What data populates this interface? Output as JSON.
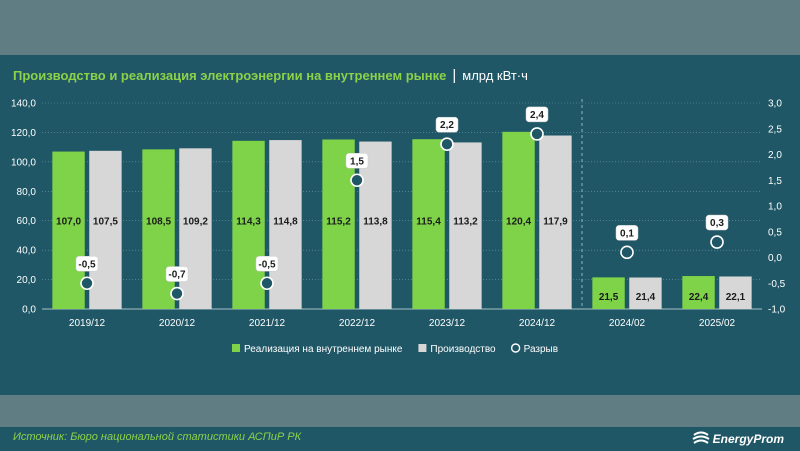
{
  "title": "Производство и реализация электроэнергии на внутреннем рынке",
  "title_separator": "|",
  "unit": "млрд кВт·ч",
  "source": "Источник: Бюро национальной статистики АСПиР РК",
  "brand": {
    "name": "EnergyProm",
    "icon": "energyprom-logo-icon"
  },
  "colors": {
    "background": "#1f5766",
    "sales": "#7ed348",
    "production": "#d7d7d7",
    "gap_marker_fill": "#1f5766",
    "gap_marker_stroke": "#ffffff",
    "grid": "#6f9aa3",
    "text": "#ffffff",
    "title": "#8cd14a"
  },
  "chart_data": {
    "type": "bar",
    "categories": [
      "2019/12",
      "2020/12",
      "2021/12",
      "2022/12",
      "2023/12",
      "2024/12",
      "2024/02",
      "2025/02"
    ],
    "divider_after_index": 5,
    "series": [
      {
        "name": "Реализация на внутреннем рынке",
        "type": "bar",
        "axis": "left",
        "values": [
          107.0,
          108.5,
          114.3,
          115.2,
          115.4,
          120.4,
          21.5,
          22.4
        ],
        "labels": [
          "107,0",
          "108,5",
          "114,3",
          "115,2",
          "115,4",
          "120,4",
          "21,5",
          "22,4"
        ]
      },
      {
        "name": "Производство",
        "type": "bar",
        "axis": "left",
        "values": [
          107.5,
          109.2,
          114.8,
          113.8,
          113.2,
          117.9,
          21.4,
          22.1
        ],
        "labels": [
          "107,5",
          "109,2",
          "114,8",
          "113,8",
          "113,2",
          "117,9",
          "21,4",
          "22,1"
        ]
      },
      {
        "name": "Разрыв",
        "type": "scatter",
        "axis": "right",
        "values": [
          -0.5,
          -0.7,
          -0.5,
          1.5,
          2.2,
          2.4,
          0.1,
          0.3
        ],
        "labels": [
          "-0,5",
          "-0,7",
          "-0,5",
          "1,5",
          "2,2",
          "2,4",
          "0,1",
          "0,3"
        ]
      }
    ],
    "y_left": {
      "min": 0,
      "max": 140,
      "ticks": [
        "0,0",
        "20,0",
        "40,0",
        "60,0",
        "80,0",
        "100,0",
        "120,0",
        "140,0"
      ]
    },
    "y_right": {
      "min": -1.0,
      "max": 3.0,
      "ticks": [
        "-1,0",
        "-0,5",
        "0,0",
        "0,5",
        "1,0",
        "1,5",
        "2,0",
        "2,5",
        "3,0"
      ]
    },
    "grid": true,
    "legend": "bottom"
  }
}
